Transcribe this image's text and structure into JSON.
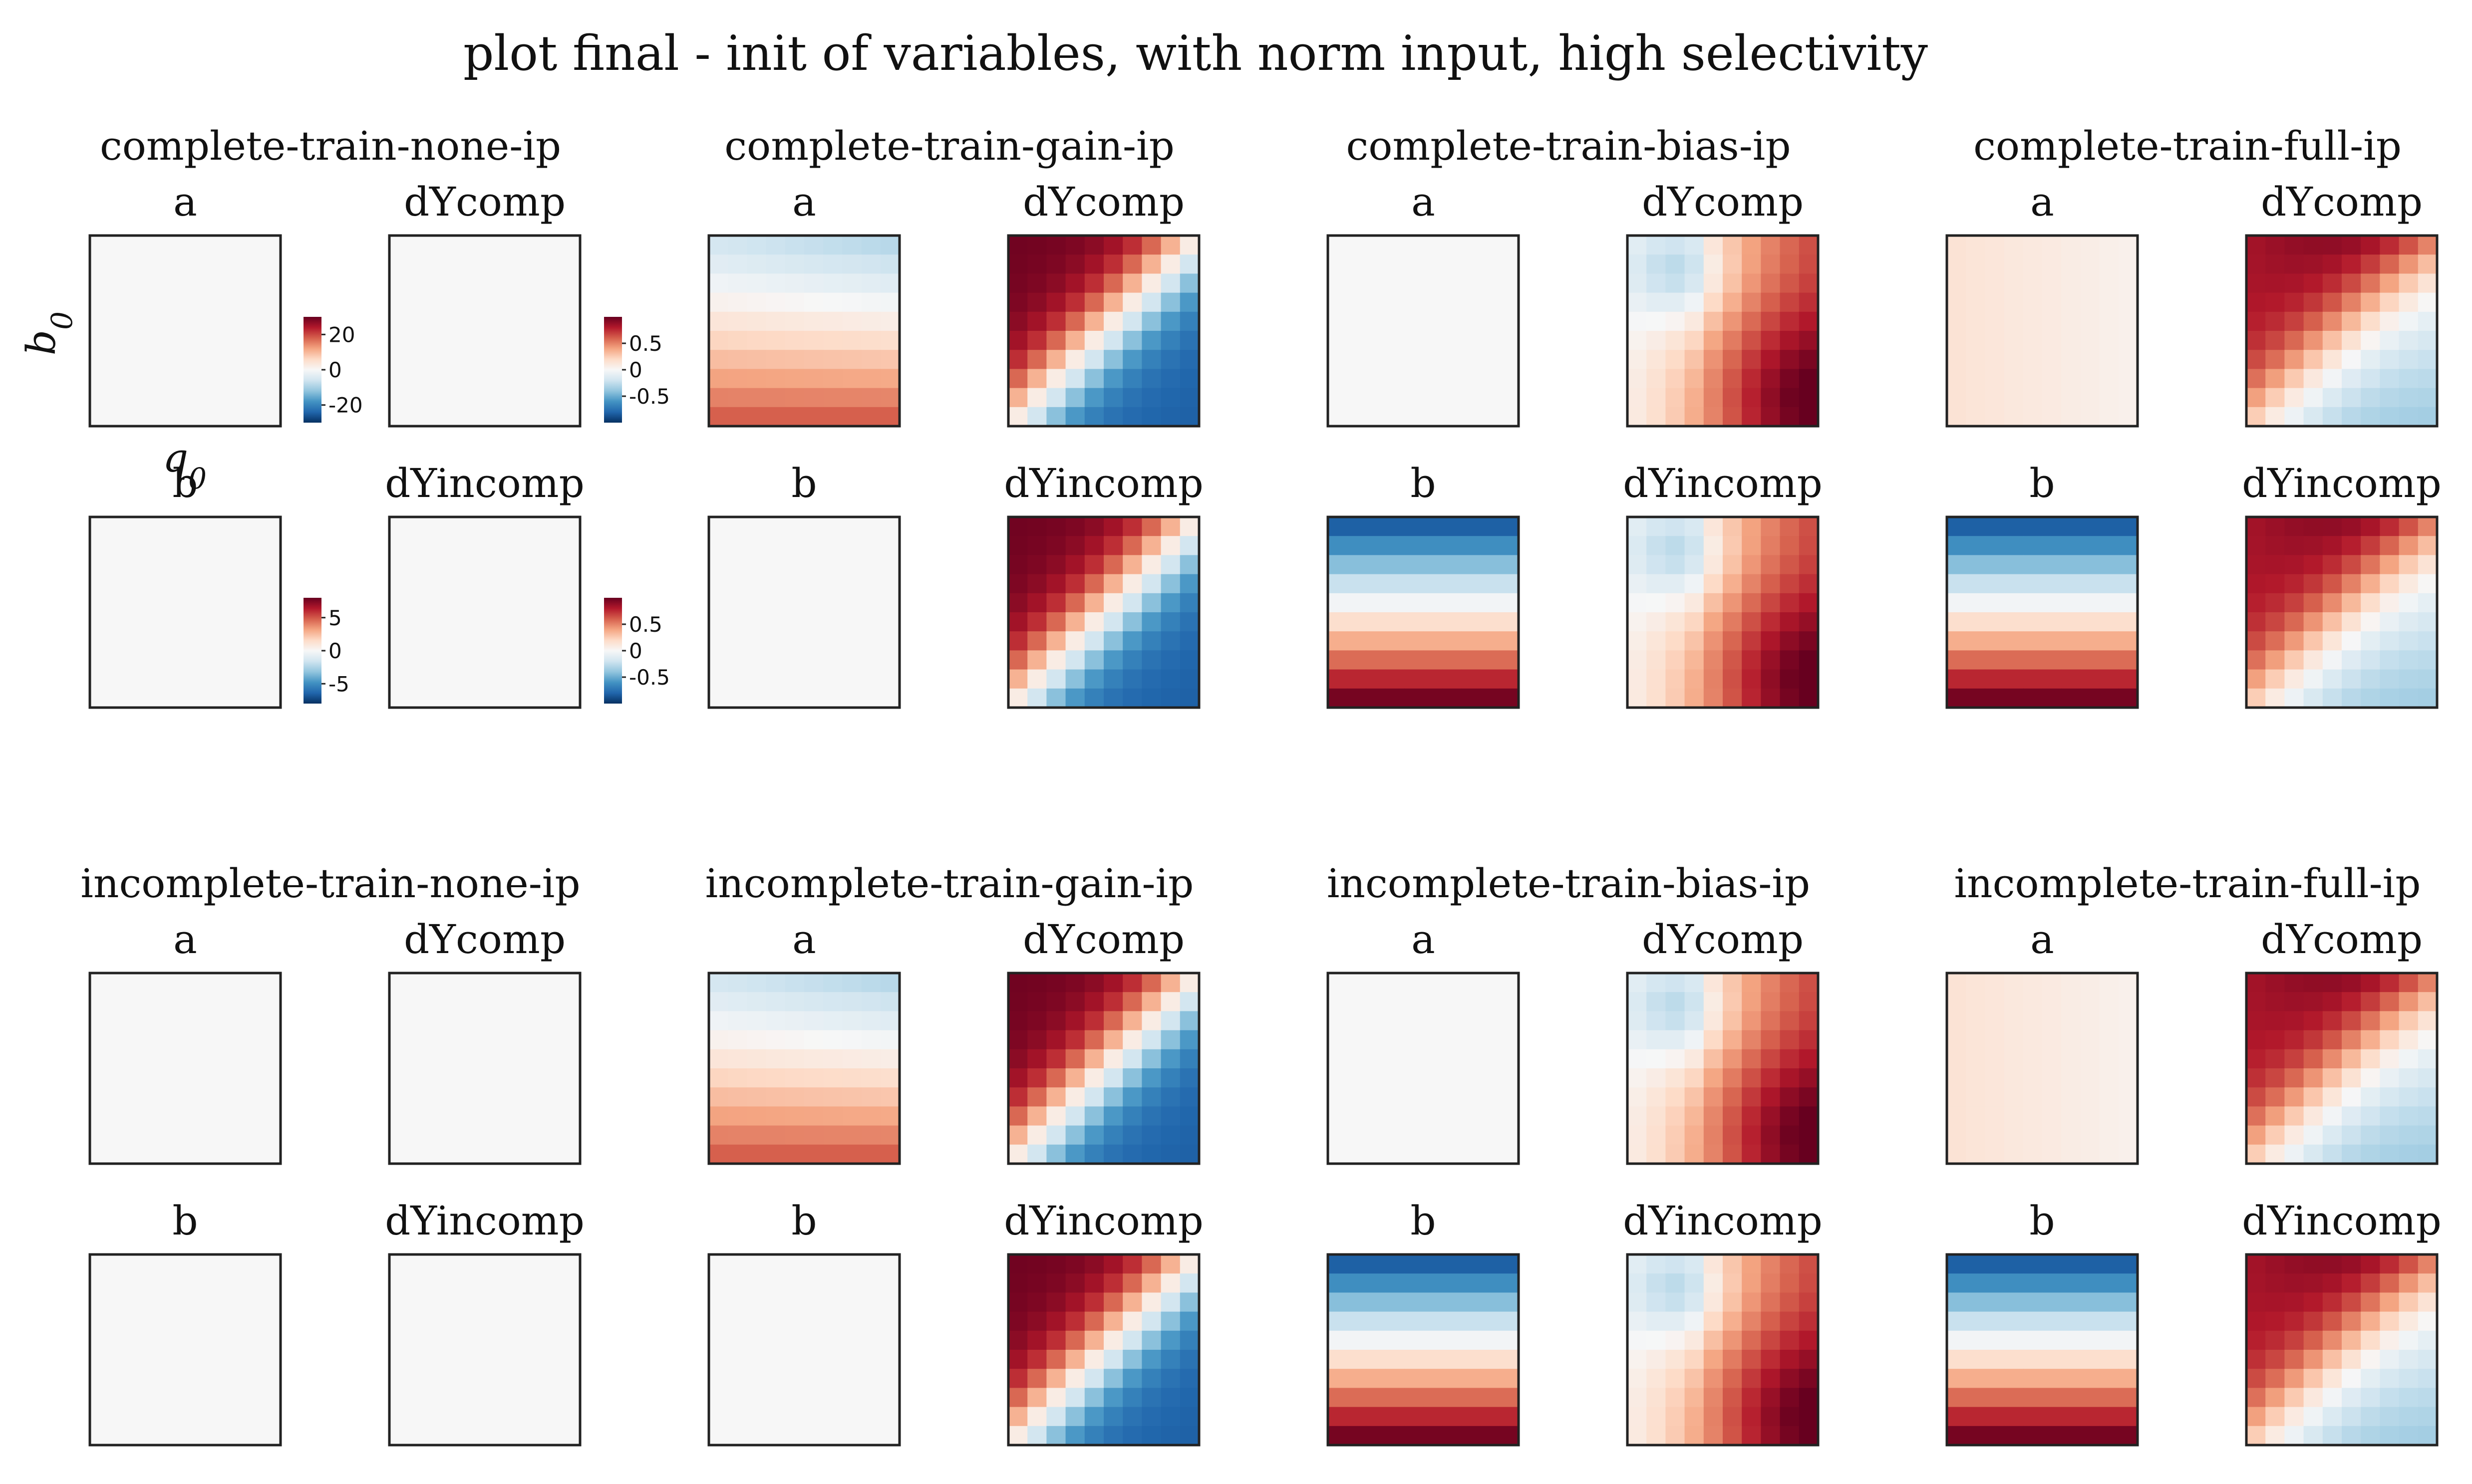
{
  "chart_data": {
    "type": "heatmap",
    "title": "plot final - init of variables, with norm input, high selectivity",
    "xlabel": "q0",
    "ylabel": "b0",
    "colorbars": [
      {
        "label": "a",
        "ticks": [
          "20",
          "0",
          "-20"
        ],
        "vmin": -30,
        "vmax": 30
      },
      {
        "label": "dYcomp",
        "ticks": [
          "0.5",
          "0",
          "-0.5"
        ],
        "vmin": -1,
        "vmax": 1
      },
      {
        "label": "b",
        "ticks": [
          "5",
          "0",
          "-5"
        ],
        "vmin": -8,
        "vmax": 8
      },
      {
        "label": "dYincomp",
        "ticks": [
          "0.5",
          "0",
          "-0.5"
        ],
        "vmin": -1,
        "vmax": 1
      }
    ],
    "panel_labels": [
      "a",
      "dYcomp",
      "b",
      "dYincomp"
    ],
    "groups": [
      {
        "title": "complete-train-none-ip",
        "cells": {
          "a": "zero",
          "dYcomp": "zero",
          "b": "zero",
          "dYincomp": "zero"
        }
      },
      {
        "title": "complete-train-gain-ip",
        "cells": {
          "a": "gainA",
          "dYcomp": "diagStrong",
          "b": "zero",
          "dYincomp": "diagStrong"
        }
      },
      {
        "title": "complete-train-bias-ip",
        "cells": {
          "a": "zero",
          "dYcomp": "bias",
          "b": "bGrad",
          "dYincomp": "bias"
        }
      },
      {
        "title": "complete-train-full-ip",
        "cells": {
          "a": "fullA",
          "dYcomp": "full",
          "b": "bGrad",
          "dYincomp": "full"
        }
      },
      {
        "title": "incomplete-train-none-ip",
        "cells": {
          "a": "zero",
          "dYcomp": "zero",
          "b": "zero",
          "dYincomp": "zero"
        }
      },
      {
        "title": "incomplete-train-gain-ip",
        "cells": {
          "a": "gainA",
          "dYcomp": "diagStrong",
          "b": "zero",
          "dYincomp": "diagStrong"
        }
      },
      {
        "title": "incomplete-train-bias-ip",
        "cells": {
          "a": "zero",
          "dYcomp": "bias",
          "b": "bGrad",
          "dYincomp": "bias"
        }
      },
      {
        "title": "incomplete-train-full-ip",
        "cells": {
          "a": "fullA",
          "dYcomp": "full",
          "b": "bGrad",
          "dYincomp": "full"
        }
      }
    ],
    "grid": false,
    "colormap": "RdBu_r"
  }
}
